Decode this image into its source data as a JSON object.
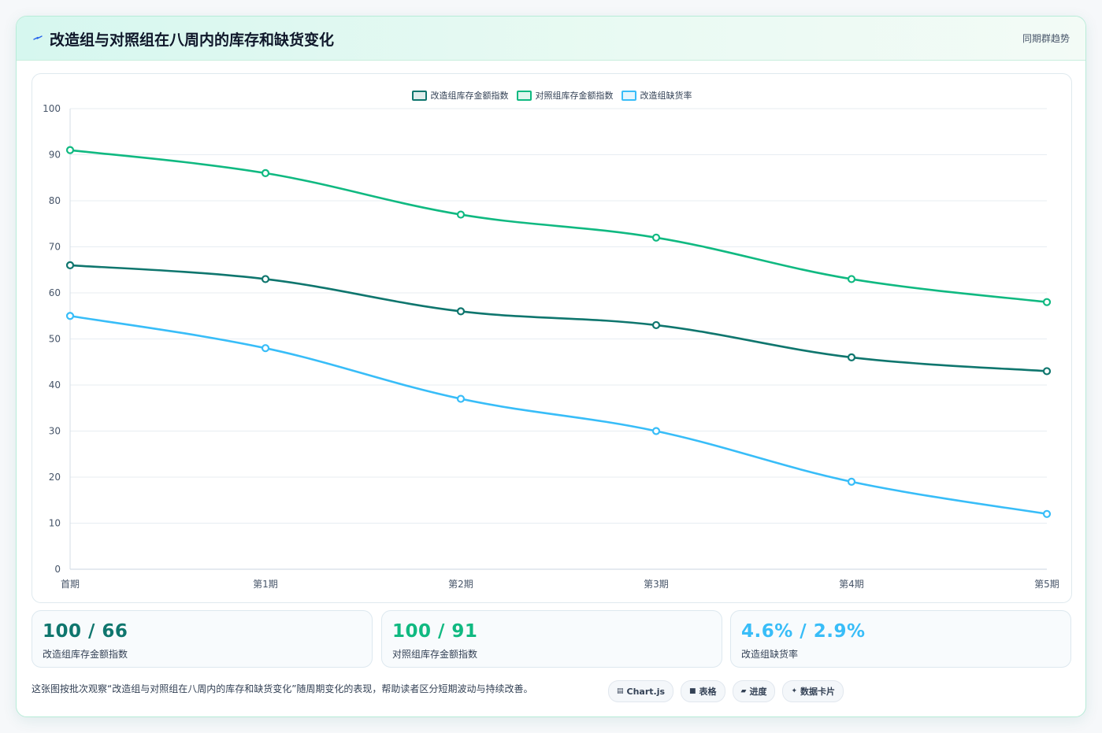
{
  "header": {
    "title": "改造组与对照组在八周内的库存和缺货变化",
    "tag": "同期群趋势"
  },
  "colors": {
    "dark_green": "#0f766e",
    "green": "#10b981",
    "blue": "#38bdf8"
  },
  "chart_data": {
    "type": "line",
    "categories": [
      "首期",
      "第1期",
      "第2期",
      "第3期",
      "第4期",
      "第5期"
    ],
    "series": [
      {
        "name": "改造组库存金额指数",
        "color": "#0f766e",
        "values": [
          66,
          63,
          56,
          53,
          46,
          43
        ]
      },
      {
        "name": "对照组库存金额指数",
        "color": "#10b981",
        "values": [
          91,
          86,
          77,
          72,
          63,
          58
        ]
      },
      {
        "name": "改造组缺货率",
        "color": "#38bdf8",
        "values": [
          55,
          48,
          37,
          30,
          19,
          12
        ]
      }
    ],
    "ylim": [
      0,
      100
    ],
    "yticks": [
      0,
      10,
      20,
      30,
      40,
      50,
      60,
      70,
      80,
      90,
      100
    ],
    "grid": true,
    "legend_position": "top-center"
  },
  "stats": [
    {
      "value": "100 / 66",
      "label": "改造组库存金额指数",
      "color": "#0f766e"
    },
    {
      "value": "100 / 91",
      "label": "对照组库存金额指数",
      "color": "#10b981"
    },
    {
      "value": "4.6% / 2.9%",
      "label": "改造组缺货率",
      "color": "#38bdf8"
    }
  ],
  "footer": {
    "text": "这张图按批次观察“改造组与对照组在八周内的库存和缺货变化”随周期变化的表现，帮助读者区分短期波动与持续改善。",
    "chips": [
      {
        "icon": "bar-chart-icon",
        "glyph": "▤",
        "label": "Chart.js"
      },
      {
        "icon": "table-icon",
        "glyph": "■",
        "label": "表格"
      },
      {
        "icon": "progress-icon",
        "glyph": "▰",
        "label": "进度"
      },
      {
        "icon": "data-card-icon",
        "glyph": "✦",
        "label": "数据卡片"
      }
    ]
  }
}
